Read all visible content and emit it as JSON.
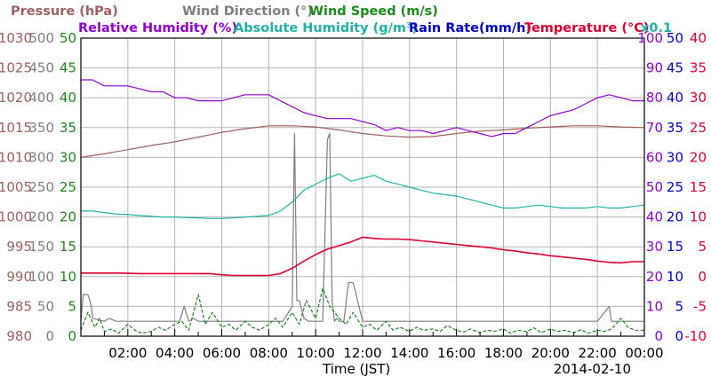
{
  "chart_data": {
    "type": "line",
    "title_rows": [
      [
        {
          "text": "Pressure (hPa)",
          "color": "#a0605f"
        },
        {
          "text": "Wind Direction (°)",
          "color": "#7f7f7f"
        },
        {
          "text": "Wind Speed (m/s)",
          "color": "#1a8a1a"
        }
      ],
      [
        {
          "text": "Relative Humidity (%)",
          "color": "#9400d3"
        },
        {
          "text": "Absolute Humidity (g/m³)",
          "color": "#20b2aa"
        },
        {
          "text": "Rain Rate(mm/h)",
          "color": "#0000cd"
        },
        {
          "text": "Temperature (°C)",
          "color": "#e00030"
        },
        {
          "text": "x0.1",
          "color": "#20b2aa"
        }
      ]
    ],
    "xlabel": "Time (JST)",
    "date": "2014-02-10",
    "x_ticks": [
      "02:00",
      "04:00",
      "06:00",
      "08:00",
      "10:00",
      "12:00",
      "14:00",
      "16:00",
      "18:00",
      "20:00",
      "22:00",
      "00:00"
    ],
    "xlim_hours": [
      0,
      24
    ],
    "grid": true,
    "left_axes": [
      {
        "name": "Pressure (hPa)",
        "color": "#a0605f",
        "ticks": [
          "980",
          "985",
          "990",
          "995",
          "1000",
          "1005",
          "1010",
          "1015",
          "1020",
          "1025",
          "1030"
        ],
        "ylim": [
          980,
          1030
        ]
      },
      {
        "name": "Wind Direction (°)",
        "color": "#7f7f7f",
        "ticks": [
          "0",
          "50",
          "100",
          "150",
          "200",
          "250",
          "300",
          "350",
          "400",
          "450",
          "500"
        ],
        "ylim": [
          0,
          500
        ]
      },
      {
        "name": "Wind Speed (m/s)",
        "color": "#1a8a1a",
        "ticks": [
          "0",
          "5",
          "10",
          "15",
          "20",
          "25",
          "30",
          "35",
          "40",
          "45",
          "50"
        ],
        "ylim": [
          0,
          50
        ]
      }
    ],
    "right_axes": [
      {
        "name": "Relative Humidity (%)",
        "color": "#9400d3",
        "ticks": [
          "0",
          "10",
          "20",
          "30",
          "40",
          "50",
          "60",
          "70",
          "80",
          "90",
          "100"
        ],
        "ylim": [
          0,
          100
        ]
      },
      {
        "name": "Rain Rate(mm/h)",
        "color": "#0000cd",
        "ticks": [
          "0",
          "5",
          "10",
          "15",
          "20",
          "25",
          "30",
          "35",
          "40",
          "45",
          "50"
        ],
        "ylim": [
          0,
          50
        ]
      },
      {
        "name": "Temperature (°C)",
        "color": "#e00030",
        "ticks": [
          "-10",
          "-5",
          "0",
          "5",
          "10",
          "15",
          "20",
          "25",
          "30",
          "35",
          "40"
        ],
        "ylim": [
          -10,
          40
        ]
      }
    ],
    "series": [
      {
        "name": "Pressure (hPa)",
        "color": "#a0605f",
        "axis": "pressure",
        "style": "solid",
        "x": [
          0,
          1,
          2,
          3,
          4,
          5,
          6,
          7,
          8,
          9,
          10,
          11,
          12,
          13,
          14,
          15,
          16,
          17,
          18,
          19,
          20,
          21,
          22,
          23,
          24
        ],
        "y": [
          1010,
          1010.6,
          1011.3,
          1012,
          1012.6,
          1013.4,
          1014.2,
          1014.8,
          1015.3,
          1015.3,
          1015.1,
          1014.6,
          1014,
          1013.6,
          1013.4,
          1013.5,
          1014,
          1014.4,
          1014.6,
          1014.9,
          1015.1,
          1015.3,
          1015.3,
          1015.1,
          1015
        ]
      },
      {
        "name": "Relative Humidity (%)",
        "color": "#9400d3",
        "axis": "rh",
        "style": "solid",
        "x": [
          0,
          0.5,
          1,
          1.5,
          2,
          2.5,
          3,
          3.5,
          4,
          4.5,
          5,
          5.5,
          6,
          6.5,
          7,
          7.5,
          8,
          8.5,
          9,
          9.5,
          10,
          10.5,
          11,
          11.5,
          12,
          12.5,
          13,
          13.5,
          14,
          14.5,
          15,
          15.5,
          16,
          16.5,
          17,
          17.5,
          18,
          18.5,
          19,
          19.5,
          20,
          20.5,
          21,
          21.5,
          22,
          22.5,
          23,
          23.5,
          24
        ],
        "y": [
          86,
          86,
          84,
          84,
          84,
          83,
          82,
          82,
          80,
          80,
          79,
          79,
          79,
          80,
          81,
          81,
          81,
          79,
          77,
          75,
          74,
          73,
          73,
          73,
          72,
          71,
          69,
          70,
          69,
          69,
          68,
          69,
          70,
          69,
          68,
          67,
          68,
          68,
          70,
          72,
          74,
          75,
          76,
          78,
          80,
          81,
          80,
          79,
          79
        ]
      },
      {
        "name": "Absolute Humidity (g/m³)",
        "color": "#20b2aa",
        "axis": "ah",
        "style": "solid",
        "x": [
          0,
          0.5,
          1,
          1.5,
          2,
          2.5,
          3,
          3.5,
          4,
          4.5,
          5,
          5.5,
          6,
          6.5,
          7,
          7.5,
          8,
          8.5,
          9,
          9.5,
          10,
          10.5,
          11,
          11.5,
          12,
          12.5,
          13,
          13.5,
          14,
          14.5,
          15,
          15.5,
          16,
          16.5,
          17,
          17.5,
          18,
          18.5,
          19,
          19.5,
          20,
          20.5,
          21,
          21.5,
          22,
          22.5,
          23,
          23.5,
          24
        ],
        "y": [
          4.2,
          4.2,
          4.15,
          4.1,
          4.08,
          4.05,
          4.02,
          4,
          4,
          3.98,
          3.97,
          3.95,
          3.95,
          3.97,
          4,
          4.02,
          4.05,
          4.2,
          4.5,
          4.9,
          5.1,
          5.3,
          5.45,
          5.2,
          5.3,
          5.4,
          5.2,
          5.1,
          5,
          4.9,
          4.8,
          4.75,
          4.7,
          4.6,
          4.5,
          4.4,
          4.3,
          4.3,
          4.35,
          4.4,
          4.35,
          4.3,
          4.3,
          4.3,
          4.35,
          4.3,
          4.3,
          4.35,
          4.4
        ]
      },
      {
        "name": "Temperature (°C)",
        "color": "#e00030",
        "axis": "temp",
        "style": "solid",
        "x": [
          0,
          0.5,
          1,
          1.5,
          2,
          2.5,
          3,
          3.5,
          4,
          4.5,
          5,
          5.5,
          6,
          6.5,
          7,
          7.5,
          8,
          8.5,
          9,
          9.5,
          10,
          10.5,
          11,
          11.5,
          12,
          12.5,
          13,
          13.5,
          14,
          14.5,
          15,
          15.5,
          16,
          16.5,
          17,
          17.5,
          18,
          18.5,
          19,
          19.5,
          20,
          20.5,
          21,
          21.5,
          22,
          22.5,
          23,
          23.5,
          24
        ],
        "y": [
          0.6,
          0.6,
          0.6,
          0.6,
          0.55,
          0.5,
          0.5,
          0.5,
          0.5,
          0.5,
          0.5,
          0.5,
          0.3,
          0.2,
          0.2,
          0.2,
          0.2,
          0.5,
          1.4,
          2.6,
          3.7,
          4.6,
          5.2,
          5.8,
          6.6,
          6.4,
          6.3,
          6.3,
          6.2,
          6,
          5.8,
          5.6,
          5.4,
          5.2,
          5,
          4.8,
          4.5,
          4.3,
          4,
          3.8,
          3.5,
          3.3,
          3.1,
          2.9,
          2.6,
          2.4,
          2.3,
          2.5,
          2.5
        ]
      },
      {
        "name": "Wind Direction (°)",
        "color": "#7f7f7f",
        "axis": "winddir",
        "style": "solid",
        "x": [
          0,
          0.1,
          0.3,
          0.45,
          0.5,
          1,
          1.2,
          1.5,
          1.7,
          2,
          2.2,
          2.4,
          2.5,
          3,
          3.2,
          3.5,
          4,
          4.2,
          4.4,
          4.6,
          4.8,
          5,
          5.2,
          5.4,
          5.6,
          5.8,
          6,
          6.5,
          7,
          7.5,
          8,
          8.3,
          8.6,
          9,
          9.1,
          9.2,
          9.3,
          9.5,
          9.7,
          10,
          10.3,
          10.5,
          10.6,
          10.7,
          10.8,
          10.9,
          11,
          11.2,
          11.4,
          11.6,
          12,
          14,
          16,
          18,
          20,
          22,
          22.5,
          22.6,
          22.7,
          22.8,
          23,
          24
        ],
        "y": [
          25,
          70,
          70,
          50,
          30,
          25,
          30,
          25,
          25,
          25,
          25,
          25,
          25,
          25,
          25,
          25,
          25,
          25,
          50,
          25,
          30,
          25,
          25,
          25,
          25,
          25,
          25,
          25,
          25,
          25,
          25,
          25,
          25,
          50,
          340,
          60,
          60,
          30,
          25,
          25,
          25,
          330,
          340,
          60,
          25,
          30,
          25,
          25,
          90,
          90,
          25,
          25,
          25,
          25,
          25,
          25,
          50,
          25,
          25,
          25,
          25,
          25
        ]
      },
      {
        "name": "Wind Speed (m/s)",
        "color": "#1a8a1a",
        "axis": "windspeed",
        "style": "dashed",
        "x": [
          0,
          0.3,
          0.6,
          0.8,
          1,
          1.3,
          1.6,
          2,
          2.3,
          2.6,
          3,
          3.3,
          3.6,
          4,
          4.3,
          4.6,
          5,
          5.3,
          5.6,
          6,
          6.3,
          6.6,
          7,
          7.3,
          7.6,
          8,
          8.3,
          8.6,
          9,
          9.3,
          9.6,
          10,
          10.3,
          10.6,
          11,
          11.3,
          11.6,
          12,
          12.3,
          12.6,
          13,
          13.3,
          13.6,
          14,
          14.3,
          14.6,
          15,
          15.3,
          15.6,
          16,
          16.3,
          16.6,
          17,
          17.3,
          17.6,
          18,
          18.3,
          18.6,
          19,
          19.3,
          19.6,
          20,
          20.3,
          20.6,
          21,
          21.3,
          21.6,
          22,
          22.3,
          22.6,
          23,
          23.3,
          23.6,
          24
        ],
        "y": [
          1,
          4,
          1.5,
          3,
          0.8,
          1.2,
          0.5,
          2,
          1,
          0.5,
          0.8,
          1.5,
          1,
          2,
          2.5,
          1,
          7,
          2,
          4,
          1.5,
          2,
          1,
          2.5,
          1.5,
          1,
          2,
          3,
          1.5,
          4,
          2,
          6,
          3,
          8,
          5,
          3,
          2,
          4,
          1.5,
          2,
          1,
          2.5,
          1,
          1.5,
          0.8,
          1.5,
          1,
          1.2,
          0.8,
          1.8,
          1,
          0.7,
          1.2,
          0.6,
          1,
          0.8,
          1.2,
          0.5,
          1,
          0.8,
          1.4,
          0.6,
          1.2,
          0.8,
          1,
          0.6,
          1.1,
          0.5,
          1,
          0.8,
          1.2,
          3,
          1.5,
          1,
          1
        ]
      }
    ]
  }
}
